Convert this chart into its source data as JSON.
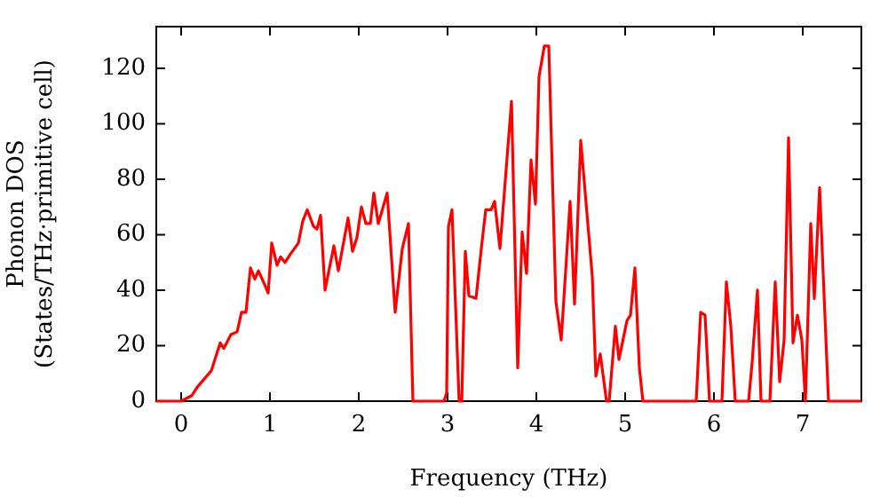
{
  "chart_data": {
    "type": "line",
    "xlabel": "Frequency (THz)",
    "ylabel": "Phonon DOS\n(States/THz·primitive cell)",
    "xlim": [
      -0.28,
      7.66
    ],
    "ylim": [
      0,
      135
    ],
    "xticks": [
      0,
      1,
      2,
      3,
      4,
      5,
      6,
      7
    ],
    "yticks": [
      0,
      20,
      40,
      60,
      80,
      100,
      120
    ],
    "grid": false,
    "legend": false,
    "marker": "none",
    "line_style": "solid",
    "series": [
      {
        "color": "#ff0000",
        "x": [
          -0.28,
          0,
          0.12,
          0.18,
          0.34,
          0.44,
          0.48,
          0.56,
          0.63,
          0.68,
          0.73,
          0.78,
          0.83,
          0.87,
          0.94,
          0.98,
          1.02,
          1.08,
          1.12,
          1.17,
          1.23,
          1.32,
          1.37,
          1.42,
          1.49,
          1.53,
          1.57,
          1.62,
          1.72,
          1.77,
          1.88,
          1.93,
          1.98,
          2.03,
          2.08,
          2.13,
          2.17,
          2.22,
          2.32,
          2.41,
          2.49,
          2.56,
          2.61,
          2.96,
          2.99,
          3.01,
          3.05,
          3.13,
          3.16,
          3.2,
          3.24,
          3.32,
          3.38,
          3.43,
          3.49,
          3.53,
          3.59,
          3.72,
          3.79,
          3.84,
          3.89,
          3.94,
          3.99,
          4.03,
          4.09,
          4.14,
          4.22,
          4.28,
          4.38,
          4.43,
          4.5,
          4.63,
          4.67,
          4.72,
          4.79,
          4.82,
          4.89,
          4.93,
          5.02,
          5.06,
          5.11,
          5.16,
          5.2,
          5.8,
          5.85,
          5.9,
          5.95,
          6.09,
          6.14,
          6.19,
          6.24,
          6.39,
          6.43,
          6.49,
          6.53,
          6.63,
          6.69,
          6.74,
          6.79,
          6.84,
          6.89,
          6.94,
          6.99,
          7.03,
          7.09,
          7.13,
          7.19,
          7.23,
          7.29,
          7.66
        ],
        "values": [
          0,
          0,
          2,
          5,
          11,
          21,
          19,
          24,
          25,
          32,
          32,
          48,
          44,
          47,
          42,
          39,
          57,
          49,
          52,
          50,
          53,
          57,
          65,
          69,
          63,
          62,
          67,
          40,
          56,
          47,
          66,
          54,
          59,
          70,
          64,
          64,
          75,
          64,
          75,
          32,
          55,
          64,
          0,
          0,
          3,
          63,
          69,
          0,
          0,
          54,
          38,
          37,
          55,
          69,
          69,
          72,
          55,
          108,
          12,
          61,
          46,
          87,
          71,
          117,
          128,
          128,
          36,
          22,
          72,
          35,
          94,
          45,
          9,
          17,
          0,
          0,
          27,
          15,
          29,
          31,
          48,
          12,
          0,
          0,
          32,
          31,
          0,
          0,
          43,
          27,
          0,
          0,
          14,
          40,
          0,
          0,
          43,
          7,
          22,
          95,
          21,
          31,
          22,
          0,
          64,
          37,
          77,
          46,
          0,
          0
        ]
      }
    ]
  }
}
